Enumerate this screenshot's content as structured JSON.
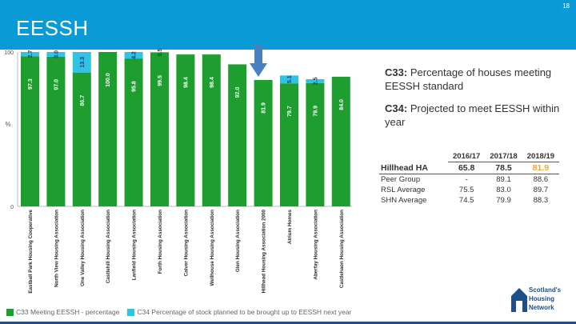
{
  "header": {
    "title": "EESSH",
    "page_number": "18"
  },
  "chart_data": {
    "type": "bar",
    "stacked": true,
    "categories": [
      "Eastball Park Housing Cooperative",
      "North View Housing Association",
      "One Valley Housing Association",
      "Castlehill Housing Association",
      "Lanfield Housing Association",
      "Forth Housing Association",
      "Calver Housing Association",
      "Wellhouse Housing Association",
      "Glen Housing Association",
      "Hillhead Housing Association 2000",
      "Atrium Homes",
      "Aberfay Housing Association",
      "Castlehaon Housing Association"
    ],
    "series": [
      {
        "name": "C33 Meeting EESSH - percentage",
        "values": [
          97.3,
          97.0,
          86.7,
          100.0,
          95.8,
          99.5,
          98.4,
          98.4,
          92.0,
          81.9,
          79.7,
          79.9,
          84.0
        ],
        "labels": [
          "97.3",
          "97.0",
          "86.7",
          "100.0",
          "95.8",
          "99.5",
          "98.4",
          "98.4",
          "92.0",
          "81.9",
          "79.7",
          "79.9",
          "84.0"
        ]
      },
      {
        "name": "C34 Percentage of stock planned to be brought up to EESSH next year",
        "values": [
          2.7,
          3.0,
          13.3,
          0,
          4.2,
          0.5,
          0,
          0,
          0,
          0,
          5.1,
          2.5,
          0
        ],
        "labels": [
          "2.7",
          "3.0",
          "13.3",
          "",
          "4.2",
          "0.5",
          "",
          "",
          "",
          "",
          "5.1",
          "2.5",
          ""
        ]
      }
    ],
    "ylim": [
      0,
      100
    ],
    "yticks": [
      "100",
      "0"
    ],
    "ylabel": "%",
    "highlight_category": "Hillhead Housing Association 2000",
    "colors": {
      "c33": "#1e9e2e",
      "c34": "#2fc3e6"
    },
    "legend_position": "bottom"
  },
  "descriptions": {
    "c33_code": "C33:",
    "c33_text": "Percentage of houses meeting EESSH standard",
    "c34_code": "C34:",
    "c34_text": "Projected to meet EESSH within year"
  },
  "table": {
    "columns": [
      "2016/17",
      "2017/18",
      "2018/19"
    ],
    "rows": [
      {
        "label": "Hillhead HA",
        "values": [
          "65.8",
          "78.5",
          "81.9"
        ]
      },
      {
        "label": "Peer Group",
        "values": [
          "-",
          "89.1",
          "88.6"
        ]
      },
      {
        "label": "RSL Average",
        "values": [
          "75.5",
          "83.0",
          "89.7"
        ]
      },
      {
        "label": "SHN Average",
        "values": [
          "74.5",
          "79.9",
          "88.3"
        ]
      }
    ]
  },
  "logo": {
    "line1": "Scotland's",
    "line2": "Housing",
    "line3": "Network"
  }
}
